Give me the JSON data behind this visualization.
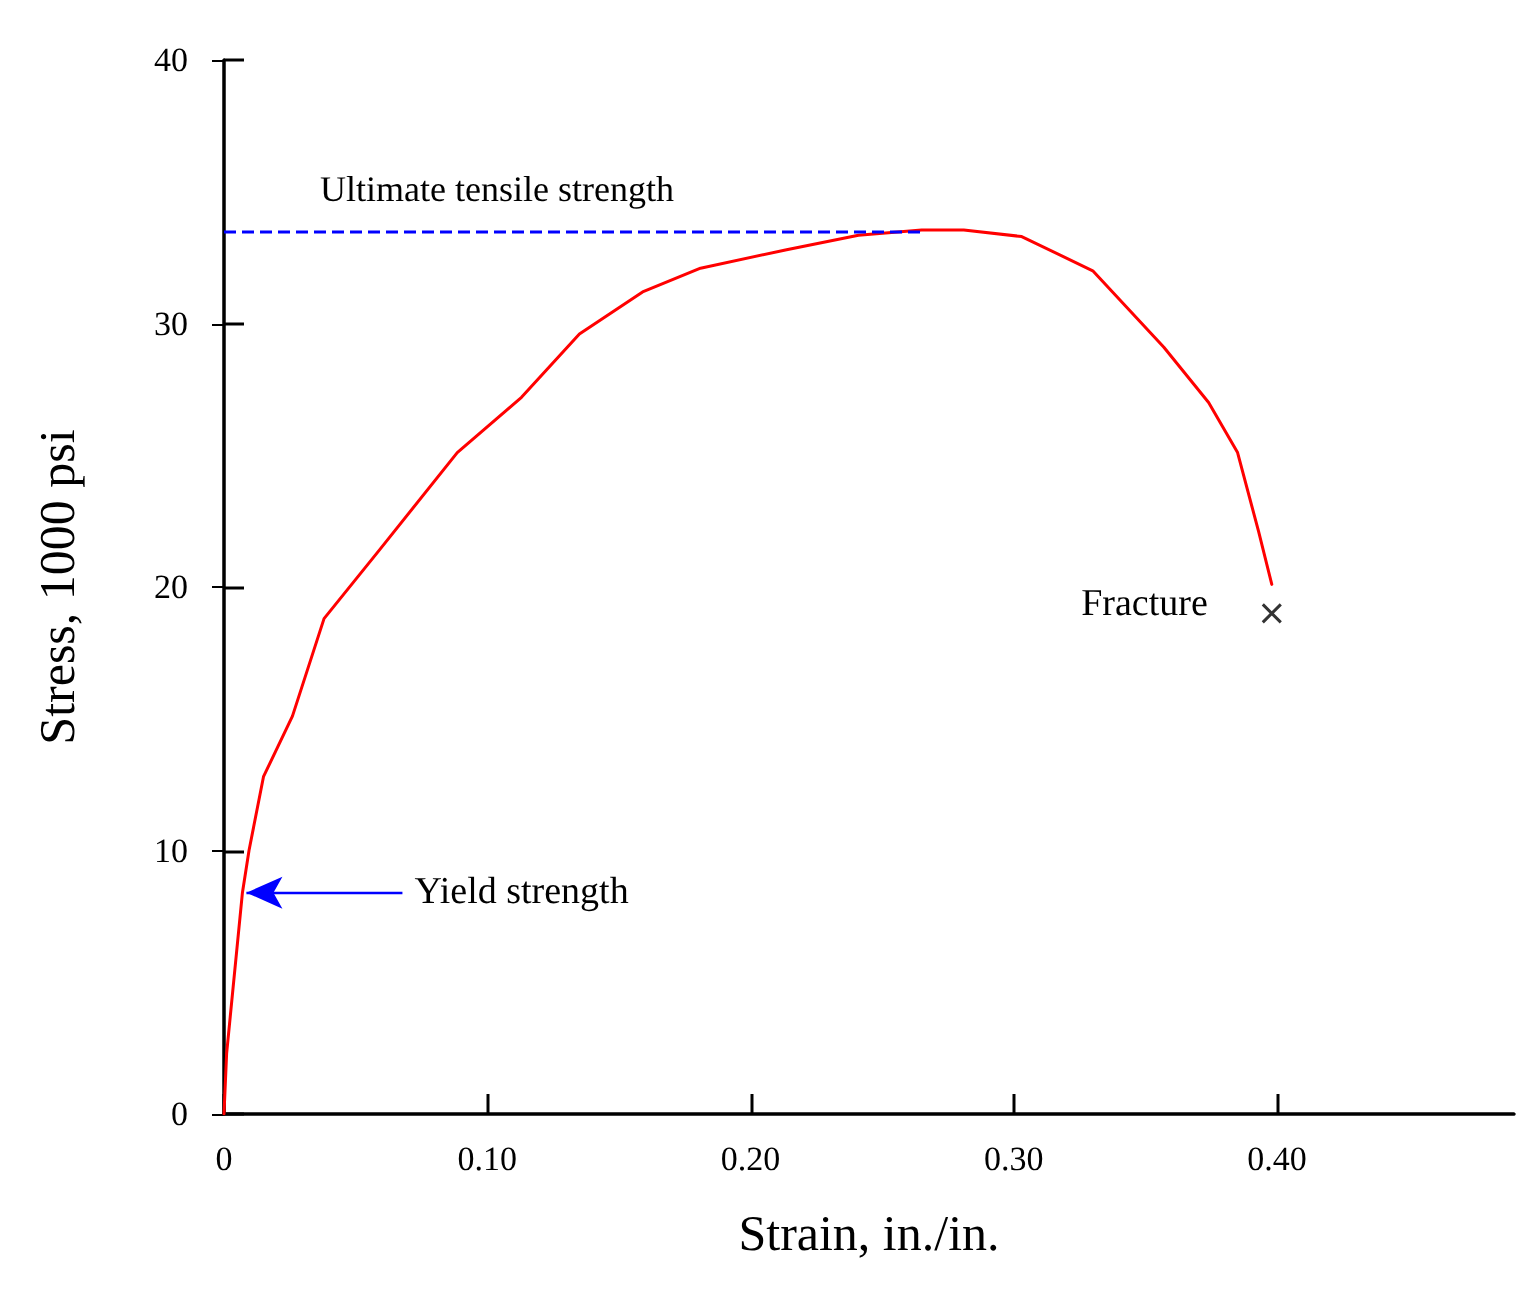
{
  "chart_data": {
    "type": "line",
    "xlabel": "Strain, in./in.",
    "ylabel": "Stress, 1000 psi",
    "xlim": [
      0,
      0.49
    ],
    "xticks": [
      0,
      {
        "value": 0.1,
        "label": "0.10"
      },
      {
        "value": 0.2,
        "label": "0.20"
      },
      {
        "value": 0.3,
        "label": "0.30"
      },
      {
        "value": 0.4,
        "label": "0.40"
      }
    ],
    "ylim": [
      0,
      40
    ],
    "yticks": [
      0,
      10,
      20,
      30,
      40
    ],
    "grid": false,
    "marker": "none",
    "line_style": "solid",
    "series": [
      {
        "color": "#ff0000",
        "x": [
          0,
          0.001,
          0.007,
          0.0095,
          0.015,
          0.026,
          0.038,
          0.059,
          0.0886,
          0.113,
          0.135,
          0.159,
          0.181,
          0.2137,
          0.241,
          0.265,
          0.281,
          0.303,
          0.33,
          0.357,
          0.374,
          0.385,
          0.393,
          0.398
        ],
        "values": [
          0,
          2.3,
          8.4,
          10,
          12.8,
          15.1,
          18.8,
          21.4,
          25.1,
          27.2,
          29.6,
          31.2,
          32.1,
          32.8,
          33.35,
          33.55,
          33.55,
          33.3,
          32,
          29.1,
          27,
          25.1,
          22.1,
          20.1
        ]
      },
      {
        "type": "scatter",
        "marker": "cross",
        "color": "#000000",
        "x": [
          0.398
        ],
        "values": [
          19
        ]
      }
    ],
    "ref_lines": [
      {
        "axis": "y",
        "value": 33.5,
        "label": "Ultimate tensile strength",
        "color": "#0000ff",
        "line_style": "dashed"
      }
    ],
    "annotations": [
      {
        "text": "Yield strength",
        "x": 0.007,
        "y": 8.4
      },
      {
        "text": "Fracture",
        "x": 0.398,
        "y": 19
      }
    ]
  }
}
